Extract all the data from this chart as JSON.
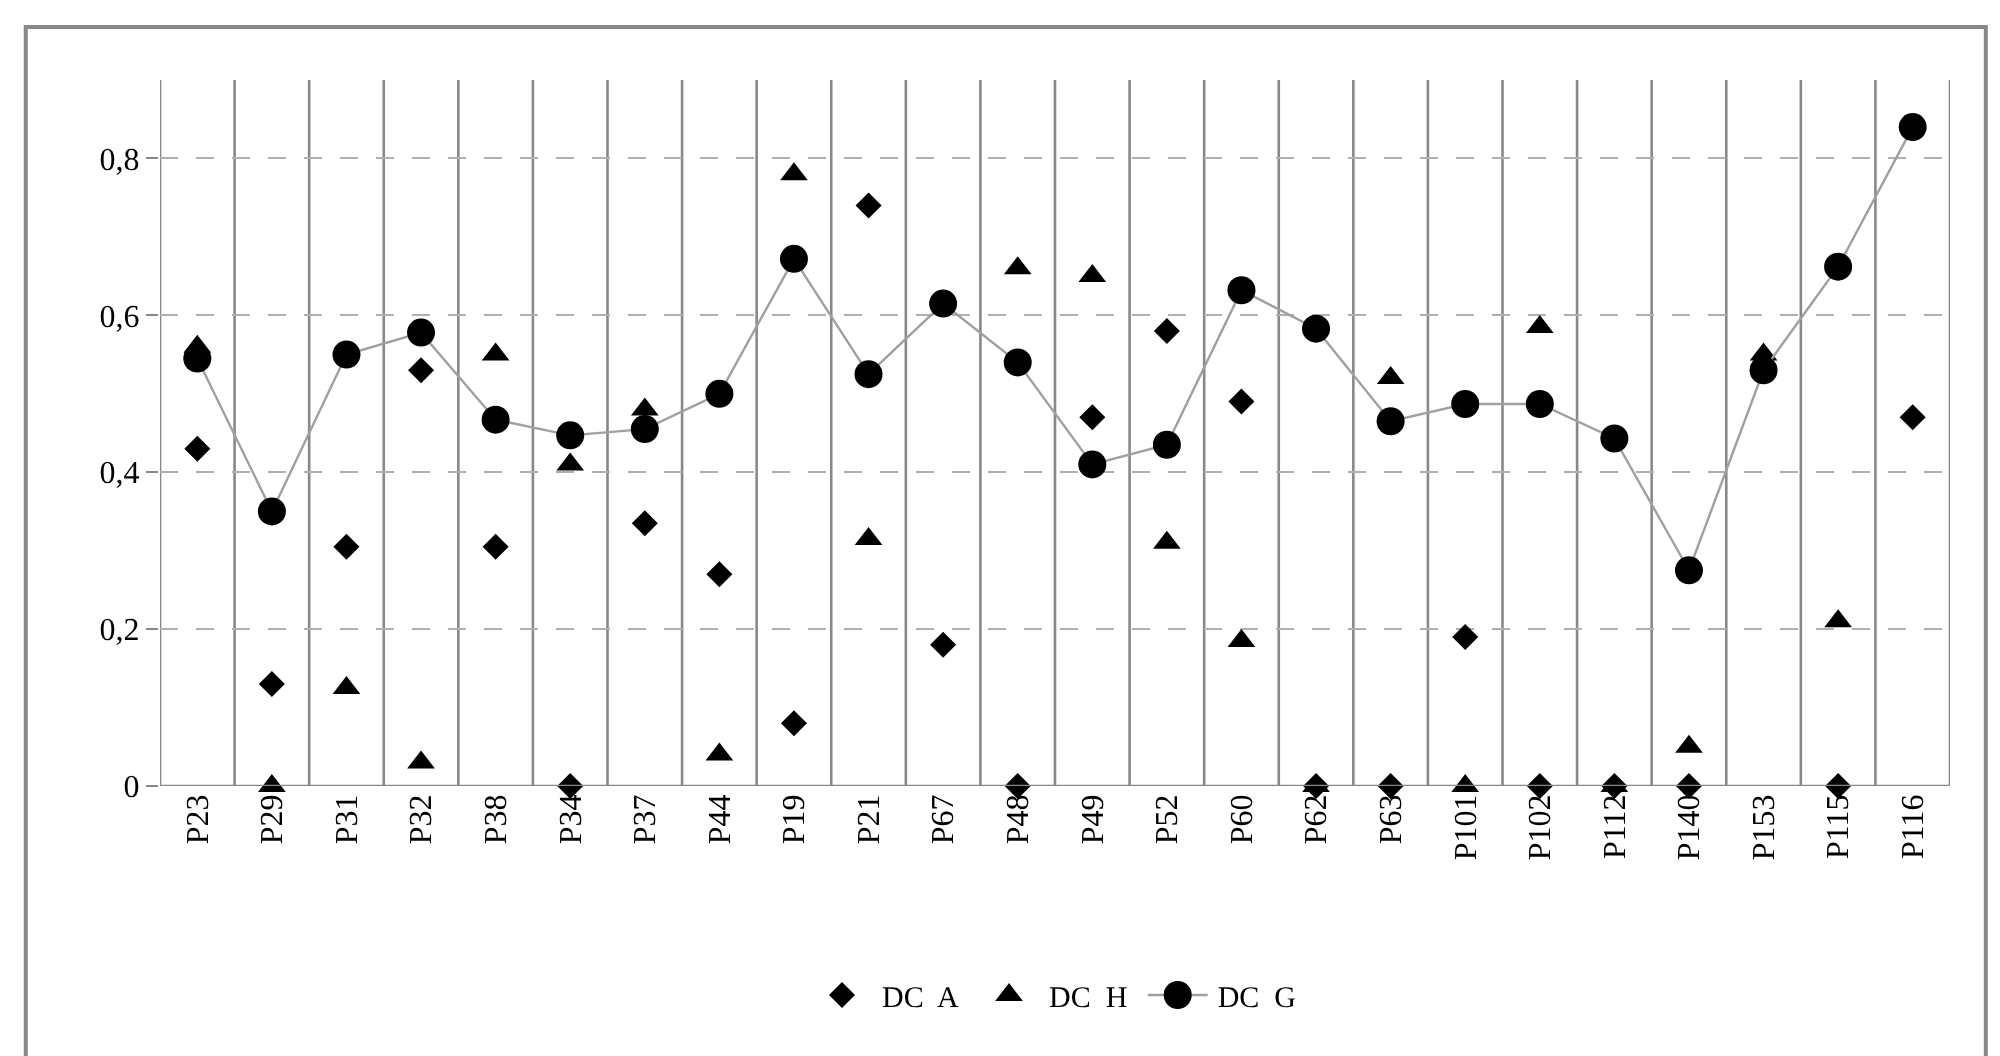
{
  "chart_data": {
    "type": "scatter",
    "categories": [
      "P23",
      "P29",
      "P31",
      "P32",
      "P38",
      "P34",
      "P37",
      "P44",
      "P19",
      "P21",
      "P67",
      "P48",
      "P49",
      "P52",
      "P60",
      "P62",
      "P63",
      "P101",
      "P102",
      "P112",
      "P140",
      "P153",
      "P115",
      "P116"
    ],
    "series": [
      {
        "name": "DC  A",
        "marker": "diamond",
        "color": "#000000",
        "values": [
          0.43,
          0.13,
          0.305,
          0.53,
          0.305,
          0,
          0.335,
          0.27,
          0.08,
          0.74,
          0.18,
          0,
          0.47,
          0.58,
          0.49,
          0,
          0,
          0.19,
          0,
          0,
          0,
          null,
          0,
          0.47
        ]
      },
      {
        "name": "DC  H",
        "marker": "triangle",
        "color": "#000000",
        "values": [
          0.56,
          0,
          0.125,
          0.03,
          0.55,
          0.41,
          0.48,
          0.04,
          0.78,
          0.315,
          null,
          0.66,
          0.65,
          0.31,
          0.185,
          0,
          0.52,
          0,
          0.585,
          0,
          0.05,
          0.55,
          0.21,
          null
        ]
      },
      {
        "name": "DC  G",
        "type": "line",
        "marker": "circle",
        "line_style": "solid",
        "color": "#000000",
        "values": [
          0.545,
          0.35,
          0.55,
          0.578,
          0.467,
          0.447,
          0.455,
          0.5,
          0.672,
          0.525,
          0.615,
          0.54,
          0.41,
          0.435,
          0.632,
          0.583,
          0.465,
          0.487,
          0.487,
          0.443,
          0.275,
          0.53,
          0.662,
          0.84
        ]
      }
    ],
    "ylim": [
      0,
      0.9
    ],
    "yticks": [
      {
        "value": 0,
        "label": "0"
      },
      {
        "value": 0.2,
        "label": "0,2"
      },
      {
        "value": 0.4,
        "label": "0,4"
      },
      {
        "value": 0.6,
        "label": "0,6"
      },
      {
        "value": 0.8,
        "label": "0,8"
      }
    ],
    "grid": true,
    "legend": "bottom"
  }
}
